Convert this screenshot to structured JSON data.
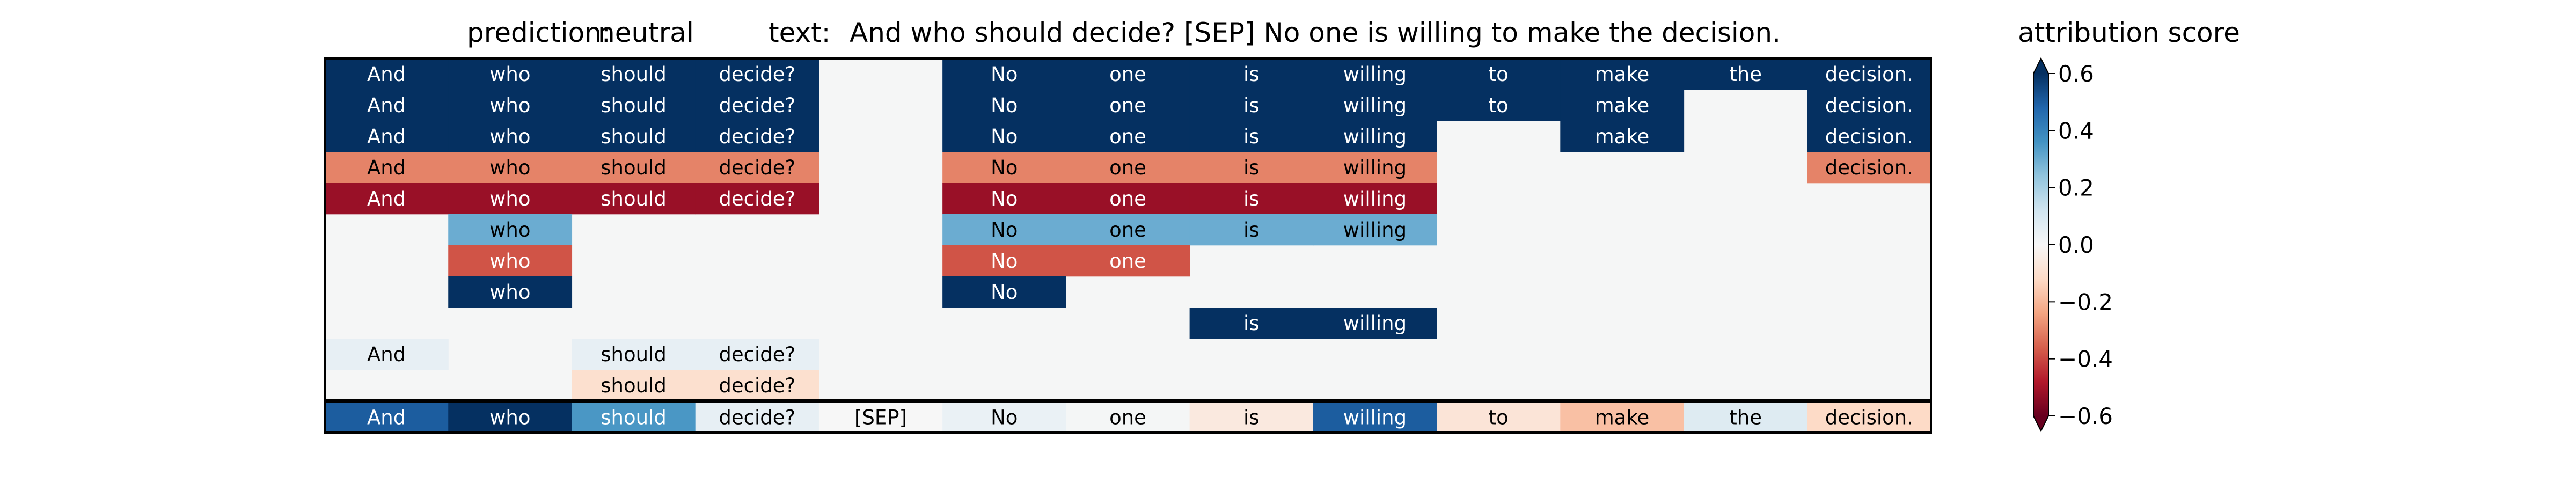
{
  "figure": {
    "prediction_label": "prediction:",
    "prediction_value": "neutral",
    "text_label": "text:",
    "text_value": "And who should decide? [SEP] No one is willing to make the decision.",
    "colorbar_title": "attribution score"
  },
  "chart_data": {
    "type": "heatmap",
    "tokens": [
      "And",
      "who",
      "should",
      "decide?",
      "[SEP]",
      "No",
      "one",
      "is",
      "willing",
      "to",
      "make",
      "the",
      "decision."
    ],
    "colorscale": "RdBu",
    "vmin": -0.6,
    "vmax": 0.6,
    "colorbar_ticks": [
      0.6,
      0.4,
      0.2,
      0.0,
      -0.2,
      -0.4,
      -0.6
    ],
    "colorbar_tick_labels": [
      "0.6",
      "0.4",
      "0.2",
      "0.0",
      "−0.2",
      "−0.4",
      "−0.6"
    ],
    "empty_color": "#f5f6f6",
    "rows": [
      [
        0.6,
        0.6,
        0.6,
        0.6,
        null,
        0.6,
        0.6,
        0.6,
        0.6,
        0.6,
        0.6,
        0.6,
        0.6
      ],
      [
        0.6,
        0.6,
        0.6,
        0.6,
        null,
        0.6,
        0.6,
        0.6,
        0.6,
        0.6,
        0.6,
        null,
        0.6
      ],
      [
        0.6,
        0.6,
        0.6,
        0.6,
        null,
        0.6,
        0.6,
        0.6,
        0.6,
        null,
        0.6,
        null,
        0.6
      ],
      [
        -0.3,
        -0.3,
        -0.3,
        -0.3,
        null,
        -0.3,
        -0.3,
        -0.3,
        -0.3,
        null,
        null,
        null,
        -0.3
      ],
      [
        -0.52,
        -0.52,
        -0.52,
        -0.52,
        null,
        -0.52,
        -0.52,
        -0.52,
        -0.52,
        null,
        null,
        null,
        null
      ],
      [
        null,
        0.3,
        null,
        null,
        null,
        0.3,
        0.3,
        0.3,
        0.3,
        null,
        null,
        null,
        null
      ],
      [
        null,
        -0.38,
        null,
        null,
        null,
        -0.38,
        -0.38,
        null,
        null,
        null,
        null,
        null,
        null
      ],
      [
        null,
        0.6,
        null,
        null,
        null,
        0.6,
        null,
        null,
        null,
        null,
        null,
        null,
        null
      ],
      [
        null,
        null,
        null,
        null,
        null,
        null,
        null,
        0.6,
        0.6,
        null,
        null,
        null,
        null
      ],
      [
        0.05,
        null,
        0.05,
        0.05,
        null,
        null,
        null,
        null,
        null,
        null,
        null,
        null,
        null
      ],
      [
        null,
        null,
        -0.1,
        -0.1,
        null,
        null,
        null,
        null,
        null,
        null,
        null,
        null,
        null
      ]
    ],
    "summary_row": [
      0.5,
      0.75,
      0.35,
      0.05,
      0.0,
      0.04,
      0.01,
      -0.06,
      0.5,
      -0.08,
      -0.18,
      0.08,
      -0.12
    ]
  }
}
